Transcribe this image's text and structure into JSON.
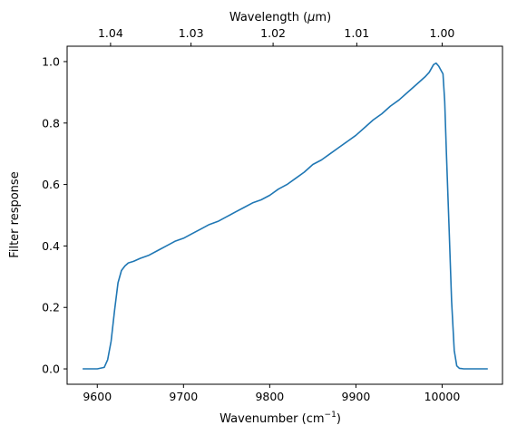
{
  "chart_data": {
    "type": "line",
    "xlabel": "Wavenumber (cm",
    "xlabel_sup": "−1",
    "xlabel_tail": ")",
    "ylabel": "Filter response",
    "top_xlabel_prefix": "Wavelength (",
    "top_xlabel_mu": "μ",
    "top_xlabel_suffix": "m)",
    "xlim": [
      9565,
      10070
    ],
    "ylim": [
      -0.05,
      1.05
    ],
    "x_ticks": [
      9600,
      9700,
      9800,
      9900,
      10000
    ],
    "x_tick_labels": [
      "9600",
      "9700",
      "9800",
      "9900",
      "10000"
    ],
    "y_ticks": [
      0.0,
      0.2,
      0.4,
      0.6,
      0.8,
      1.0
    ],
    "y_tick_labels": [
      "0.0",
      "0.2",
      "0.4",
      "0.6",
      "0.8",
      "1.0"
    ],
    "top_ticks_um": [
      1.04,
      1.03,
      1.02,
      1.01,
      1.0
    ],
    "top_tick_labels": [
      "1.04",
      "1.03",
      "1.02",
      "1.01",
      "1.00"
    ],
    "line_color": "#1f77b4",
    "grid": false,
    "series": [
      {
        "x": [
          9583,
          9600,
          9608,
          9612,
          9616,
          9620,
          9624,
          9628,
          9632,
          9636,
          9642,
          9650,
          9660,
          9670,
          9680,
          9690,
          9700,
          9710,
          9720,
          9730,
          9740,
          9750,
          9760,
          9770,
          9780,
          9790,
          9800,
          9810,
          9820,
          9830,
          9840,
          9850,
          9860,
          9870,
          9880,
          9890,
          9900,
          9910,
          9920,
          9930,
          9940,
          9950,
          9960,
          9970,
          9980,
          9985,
          9990,
          9993,
          9996,
          9999,
          10001,
          10003,
          10005,
          10008,
          10011,
          10014,
          10017,
          10020,
          10025,
          10053
        ],
        "y": [
          0.0,
          0.0,
          0.005,
          0.03,
          0.09,
          0.19,
          0.28,
          0.32,
          0.335,
          0.345,
          0.35,
          0.36,
          0.37,
          0.385,
          0.4,
          0.415,
          0.425,
          0.44,
          0.455,
          0.47,
          0.48,
          0.495,
          0.51,
          0.525,
          0.54,
          0.55,
          0.565,
          0.585,
          0.6,
          0.62,
          0.64,
          0.665,
          0.68,
          0.7,
          0.72,
          0.74,
          0.76,
          0.785,
          0.81,
          0.83,
          0.855,
          0.875,
          0.9,
          0.925,
          0.95,
          0.965,
          0.99,
          0.995,
          0.985,
          0.97,
          0.96,
          0.87,
          0.7,
          0.46,
          0.22,
          0.06,
          0.01,
          0.002,
          0.0,
          0.0
        ]
      }
    ]
  }
}
